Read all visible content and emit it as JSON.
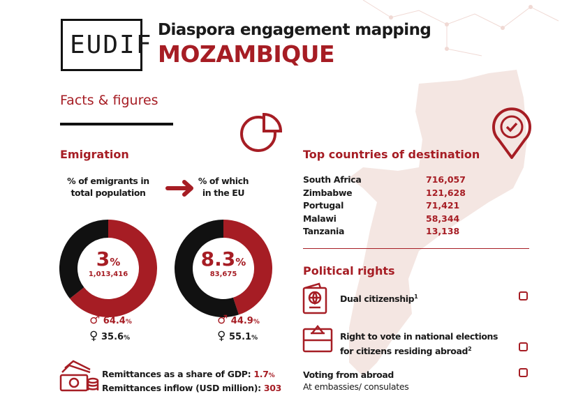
{
  "header": {
    "logo_text": "EUDIF",
    "title": "Diaspora engagement mapping",
    "country": "MOZAMBIQUE"
  },
  "section_title": "Facts & figures",
  "emigration": {
    "title": "Emigration",
    "total": {
      "label_line1": "% of emigrants in",
      "label_line2": "total population",
      "pct": "3",
      "pct_sign": "%",
      "count": "1,013,416",
      "male_pct": "64.4",
      "female_pct": "35.6",
      "male": 0.644
    },
    "eu": {
      "label_line1": "% of which",
      "label_line2": "in the EU",
      "pct": "8.3",
      "pct_sign": "%",
      "count": "83,675",
      "male_pct": "44.9",
      "female_pct": "55.1",
      "male": 0.449
    },
    "pct_sign": "%"
  },
  "remittances": {
    "gdp_label": "Remittances as a share of GDP:",
    "gdp_value": "1.7",
    "gdp_unit": "%",
    "inflow_label": "Remittances inflow (USD million):",
    "inflow_value": "303"
  },
  "destinations": {
    "title": "Top countries of destination",
    "items": [
      {
        "country": "South Africa",
        "value": "716,057"
      },
      {
        "country": "Zimbabwe",
        "value": "121,628"
      },
      {
        "country": "Portugal",
        "value": "71,421"
      },
      {
        "country": "Malawi",
        "value": "58,344"
      },
      {
        "country": "Tanzania",
        "value": "13,138"
      }
    ]
  },
  "political_rights": {
    "title": "Political rights",
    "dual": "Dual citizenship",
    "dual_sup": "1",
    "vote_line1": "Right to vote in national elections",
    "vote_line2": "for citizens residing abroad",
    "vote_sup": "2",
    "abroad": "Voting from abroad",
    "abroad_detail": "At embassies/ consulates"
  },
  "colors": {
    "accent": "#a61d24",
    "map": "#f4e6e2",
    "dark": "#111111"
  }
}
